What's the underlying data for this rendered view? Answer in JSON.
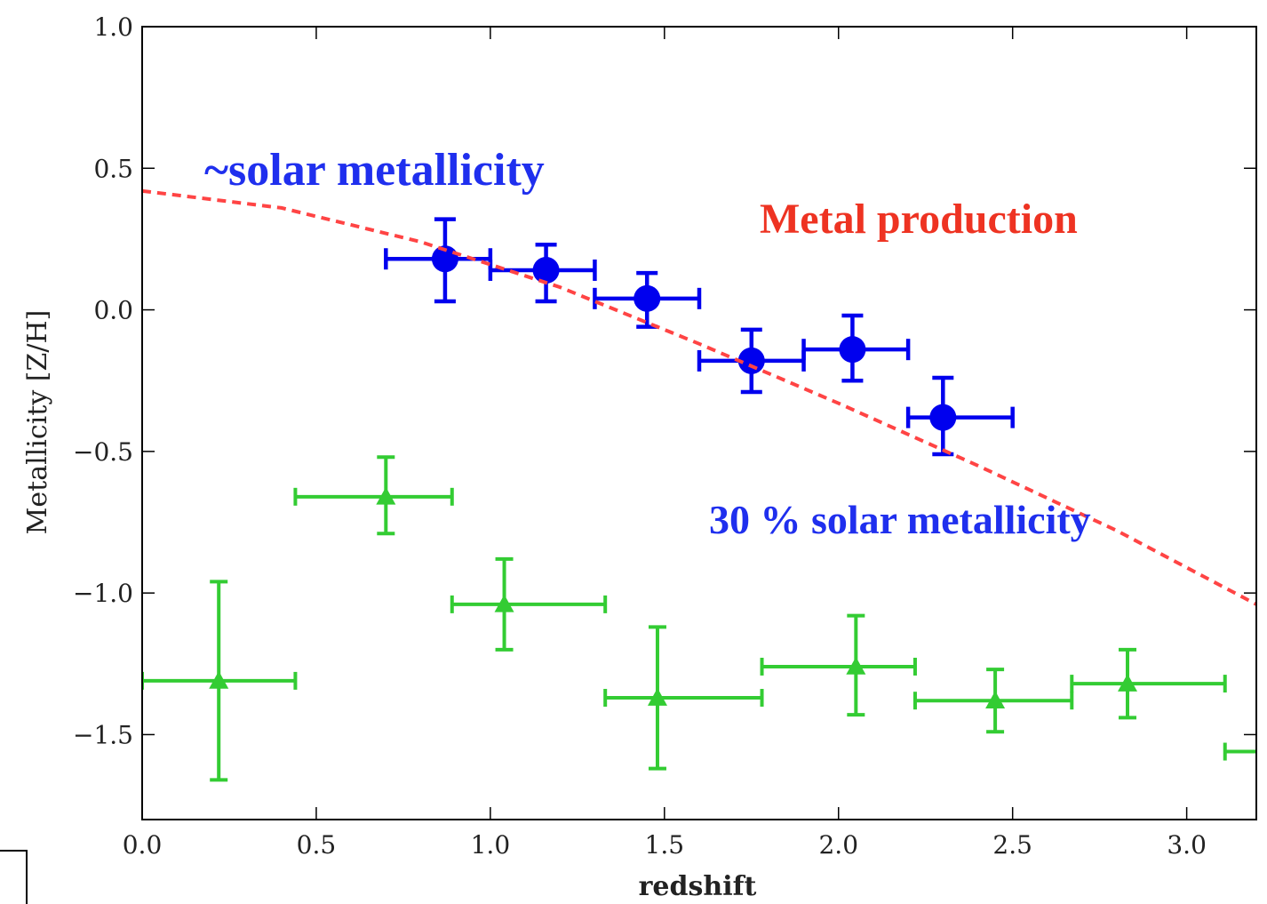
{
  "chart_data": {
    "type": "scatter",
    "xlabel": "redshift",
    "ylabel": "Metallicity [Z/H]",
    "xlim": [
      0.0,
      3.2
    ],
    "ylim": [
      -1.8,
      1.0
    ],
    "xticks": [
      0.0,
      0.5,
      1.0,
      1.5,
      2.0,
      2.5,
      3.0
    ],
    "xtick_labels": [
      "0.0",
      "0.5",
      "1.0",
      "1.5",
      "2.0",
      "2.5",
      "3.0"
    ],
    "yticks": [
      1.0,
      0.5,
      0.0,
      -0.5,
      -1.0,
      -1.5
    ],
    "ytick_labels": [
      "1.0",
      "0.5",
      "0.0",
      "−0.5",
      "−1.0",
      "−1.5"
    ],
    "grid": false,
    "series": [
      {
        "marker": "circle",
        "color": "#0000ee",
        "points": [
          {
            "x": 0.87,
            "y": 0.18,
            "xlo": 0.7,
            "xhi": 1.0,
            "ylo": 0.03,
            "yhi": 0.32
          },
          {
            "x": 1.16,
            "y": 0.14,
            "xlo": 1.0,
            "xhi": 1.3,
            "ylo": 0.03,
            "yhi": 0.23
          },
          {
            "x": 1.45,
            "y": 0.04,
            "xlo": 1.3,
            "xhi": 1.6,
            "ylo": -0.06,
            "yhi": 0.13
          },
          {
            "x": 1.75,
            "y": -0.18,
            "xlo": 1.6,
            "xhi": 1.9,
            "ylo": -0.29,
            "yhi": -0.07
          },
          {
            "x": 2.04,
            "y": -0.14,
            "xlo": 1.9,
            "xhi": 2.2,
            "ylo": -0.25,
            "yhi": -0.02
          },
          {
            "x": 2.3,
            "y": -0.38,
            "xlo": 2.2,
            "xhi": 2.5,
            "ylo": -0.51,
            "yhi": -0.24
          }
        ]
      },
      {
        "marker": "triangle",
        "color": "#33cc33",
        "points": [
          {
            "x": 0.22,
            "y": -1.31,
            "xlo": 0.0,
            "xhi": 0.44,
            "ylo": -1.66,
            "yhi": -0.96
          },
          {
            "x": 0.7,
            "y": -0.66,
            "xlo": 0.44,
            "xhi": 0.89,
            "ylo": -0.79,
            "yhi": -0.52
          },
          {
            "x": 1.04,
            "y": -1.04,
            "xlo": 0.89,
            "xhi": 1.33,
            "ylo": -1.2,
            "yhi": -0.88
          },
          {
            "x": 1.48,
            "y": -1.37,
            "xlo": 1.33,
            "xhi": 1.78,
            "ylo": -1.62,
            "yhi": -1.12
          },
          {
            "x": 2.05,
            "y": -1.26,
            "xlo": 1.78,
            "xhi": 2.22,
            "ylo": -1.43,
            "yhi": -1.08
          },
          {
            "x": 2.45,
            "y": -1.38,
            "xlo": 2.22,
            "xhi": 2.67,
            "ylo": -1.49,
            "yhi": -1.27
          },
          {
            "x": 2.83,
            "y": -1.32,
            "xlo": 2.67,
            "xhi": 3.11,
            "ylo": -1.44,
            "yhi": -1.2
          },
          {
            "x": 3.35,
            "y": -1.56,
            "xlo": 3.11,
            "xhi": 3.6,
            "ylo": -1.56,
            "yhi": -1.56
          }
        ]
      },
      {
        "type": "line",
        "style": "dashed",
        "color": "#ff4444",
        "x": [
          0.0,
          0.4,
          0.8,
          1.2,
          1.6,
          2.0,
          2.4,
          2.8,
          3.2
        ],
        "y": [
          0.42,
          0.36,
          0.24,
          0.08,
          -0.12,
          -0.33,
          -0.55,
          -0.78,
          -1.04
        ]
      }
    ],
    "annotations": [
      {
        "text": "~solar metallicity",
        "color": "#1f2fee"
      },
      {
        "text": "Metal production",
        "color": "#ee3322"
      },
      {
        "text": "30 % solar metallicity",
        "color": "#1f2fee"
      }
    ]
  }
}
